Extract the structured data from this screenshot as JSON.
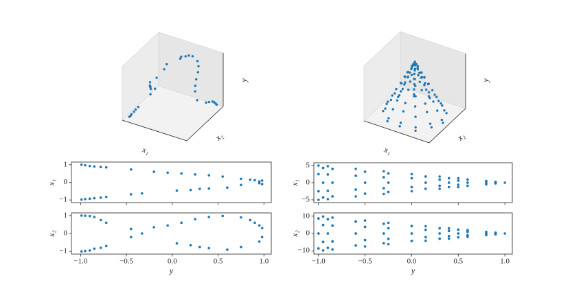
{
  "chart_data": [
    {
      "type": "scatter3d",
      "color": "#1f77b4",
      "axis3d_labels": {
        "x1": "x₁",
        "x2": "x₂",
        "y": "y"
      },
      "y": [
        -0.99,
        -0.95,
        -0.9,
        -0.85,
        -0.78,
        -0.72,
        -0.45,
        -0.2,
        -0.05,
        0.1,
        0.25,
        0.4,
        0.55,
        0.75,
        0.85,
        0.9,
        0.95,
        0.98,
        -0.99,
        -0.95,
        -0.9,
        -0.85,
        -0.78,
        -0.72,
        -0.45,
        -0.33,
        0.05,
        0.2,
        0.3,
        0.4,
        0.6,
        0.75,
        0.95,
        0.98
      ],
      "x1": [
        1.0,
        0.97,
        0.93,
        0.9,
        0.87,
        0.85,
        0.73,
        0.6,
        0.55,
        0.5,
        0.45,
        0.4,
        0.33,
        0.2,
        0.15,
        0.12,
        0.05,
        0.1,
        -0.98,
        -0.95,
        -0.93,
        -0.9,
        -0.87,
        -0.83,
        -0.68,
        -0.63,
        -0.47,
        -0.43,
        -0.37,
        -0.35,
        -0.3,
        -0.15,
        -0.05,
        -0.1
      ],
      "x2": [
        1.0,
        0.99,
        0.97,
        0.92,
        0.75,
        0.6,
        0.25,
        0.35,
        0.45,
        0.6,
        0.8,
        0.92,
        0.98,
        0.9,
        0.75,
        0.6,
        0.45,
        0.3,
        -1.0,
        -0.98,
        -0.95,
        -0.85,
        -0.8,
        -0.7,
        -0.2,
        0.0,
        -0.55,
        -0.65,
        -0.75,
        -0.82,
        -0.9,
        -0.75,
        -0.45,
        -0.2
      ],
      "xlabel": "y",
      "xlim": [
        -1.1,
        1.08
      ],
      "xticks": [
        {
          "value": -1,
          "label": "−1.0"
        },
        {
          "value": -0.5,
          "label": "−0.5"
        },
        {
          "value": 0,
          "label": "0.0"
        },
        0.5,
        {
          "value": 1,
          "label": "1.0"
        }
      ],
      "panels": [
        {
          "ylabel": "x₁",
          "ylim": [
            -1.15,
            1.15
          ],
          "yticks": [
            {
              "value": -1,
              "label": "−1"
            },
            0,
            1
          ]
        },
        {
          "ylabel": "x₂",
          "ylim": [
            -1.15,
            1.15
          ],
          "yticks": [
            {
              "value": -1,
              "label": "−1"
            },
            0,
            1
          ]
        }
      ]
    },
    {
      "type": "scatter3d",
      "color": "#1f77b4",
      "axis3d_labels": {
        "x1": "x₁",
        "x2": "x₂",
        "y": "y"
      },
      "y": [
        -1,
        -1,
        -1,
        -1,
        -1,
        -1,
        -0.95,
        -0.95,
        -0.95,
        -0.95,
        -0.95,
        -0.95,
        -0.9,
        -0.9,
        -0.9,
        -0.9,
        -0.9,
        -0.9,
        -0.85,
        -0.85,
        -0.85,
        -0.85,
        -0.85,
        -0.85,
        -0.6,
        -0.6,
        -0.6,
        -0.6,
        -0.6,
        -0.6,
        -0.5,
        -0.5,
        -0.5,
        -0.5,
        -0.5,
        -0.5,
        -0.3,
        -0.3,
        -0.3,
        -0.3,
        -0.3,
        -0.3,
        -0.25,
        -0.25,
        -0.25,
        -0.25,
        -0.25,
        -0.25,
        0,
        0,
        0,
        0,
        0,
        0,
        0.15,
        0.15,
        0.15,
        0.15,
        0.15,
        0.15,
        0.3,
        0.3,
        0.3,
        0.3,
        0.3,
        0.3,
        0.4,
        0.4,
        0.4,
        0.4,
        0.4,
        0.4,
        0.5,
        0.5,
        0.5,
        0.5,
        0.5,
        0.5,
        0.6,
        0.6,
        0.6,
        0.6,
        0.6,
        0.6,
        0.8,
        0.8,
        0.8,
        0.8,
        0.8,
        0.8,
        0.9,
        0.9,
        0.9,
        0.9,
        0.9,
        0.9,
        1
      ],
      "x1": [
        5,
        2.5,
        -2.5,
        -5,
        -2.5,
        2.5,
        4.3,
        0,
        -4.3,
        -4.3,
        0,
        4.3,
        4.8,
        2.4,
        -2.4,
        -4.8,
        -2.4,
        2.4,
        4.0,
        0,
        -4.0,
        -4.0,
        0,
        4.0,
        4,
        2,
        -2,
        -4,
        -2,
        2,
        3.2,
        0,
        -3.2,
        -3.2,
        0,
        3.2,
        3.3,
        1.6,
        -1.6,
        -3.3,
        -1.6,
        1.6,
        2.7,
        0,
        -2.7,
        -2.7,
        0,
        2.7,
        2.5,
        1.3,
        -1.3,
        -2.5,
        -1.3,
        1.3,
        1.8,
        0,
        -1.8,
        -1.8,
        0,
        1.8,
        1.8,
        0.9,
        -0.9,
        -1.8,
        -0.9,
        0.9,
        1.3,
        0,
        -1.3,
        -1.3,
        0,
        1.3,
        1.3,
        0.6,
        -0.6,
        -1.3,
        -0.6,
        0.6,
        0.9,
        0,
        -0.9,
        -0.9,
        0,
        0.9,
        0.5,
        0.3,
        -0.3,
        -0.5,
        -0.3,
        0.3,
        0.2,
        0,
        -0.2,
        -0.2,
        0,
        0.2,
        0
      ],
      "x2": [
        0,
        8.7,
        8.7,
        0,
        -8.7,
        -8.7,
        4.9,
        9.8,
        4.9,
        -4.9,
        -9.8,
        -4.9,
        0,
        8.3,
        8.3,
        0,
        -8.3,
        -8.3,
        4.6,
        9.2,
        4.6,
        -4.6,
        -9.2,
        -4.6,
        0,
        6.9,
        6.9,
        0,
        -6.9,
        -6.9,
        3.8,
        7.5,
        3.8,
        -3.8,
        -7.5,
        -3.8,
        0,
        5.6,
        5.6,
        0,
        -5.6,
        -5.6,
        3.1,
        6.2,
        3.1,
        -3.1,
        -6.2,
        -3.1,
        0,
        4.3,
        4.3,
        0,
        -4.3,
        -4.3,
        2.1,
        4.2,
        2.1,
        -2.1,
        -4.2,
        -2.1,
        0,
        3.0,
        3.0,
        0,
        -3.0,
        -3.0,
        1.5,
        3.0,
        1.5,
        -1.5,
        -3.0,
        -1.5,
        0,
        2.2,
        2.2,
        0,
        -2.2,
        -2.2,
        1.0,
        2.0,
        1.0,
        -1.0,
        -2.0,
        -1.0,
        0,
        0.9,
        0.9,
        0,
        -0.9,
        -0.9,
        0.3,
        0.5,
        0.3,
        -0.3,
        -0.5,
        -0.3,
        0
      ],
      "xlabel": "y",
      "xlim": [
        -1.05,
        1.08
      ],
      "xticks": [
        {
          "value": -1,
          "label": "−1.0"
        },
        {
          "value": -0.5,
          "label": "−0.5"
        },
        {
          "value": 0,
          "label": "0.0"
        },
        0.5,
        {
          "value": 1,
          "label": "1.0"
        }
      ],
      "panels": [
        {
          "ylabel": "x₁",
          "ylim": [
            -5.8,
            5.8
          ],
          "yticks": [
            {
              "value": -5,
              "label": "−5"
            },
            0,
            5
          ]
        },
        {
          "ylabel": "x₂",
          "ylim": [
            -11.9,
            11.9
          ],
          "yticks": [
            {
              "value": -10,
              "label": "−10"
            },
            0,
            10
          ]
        }
      ]
    }
  ]
}
